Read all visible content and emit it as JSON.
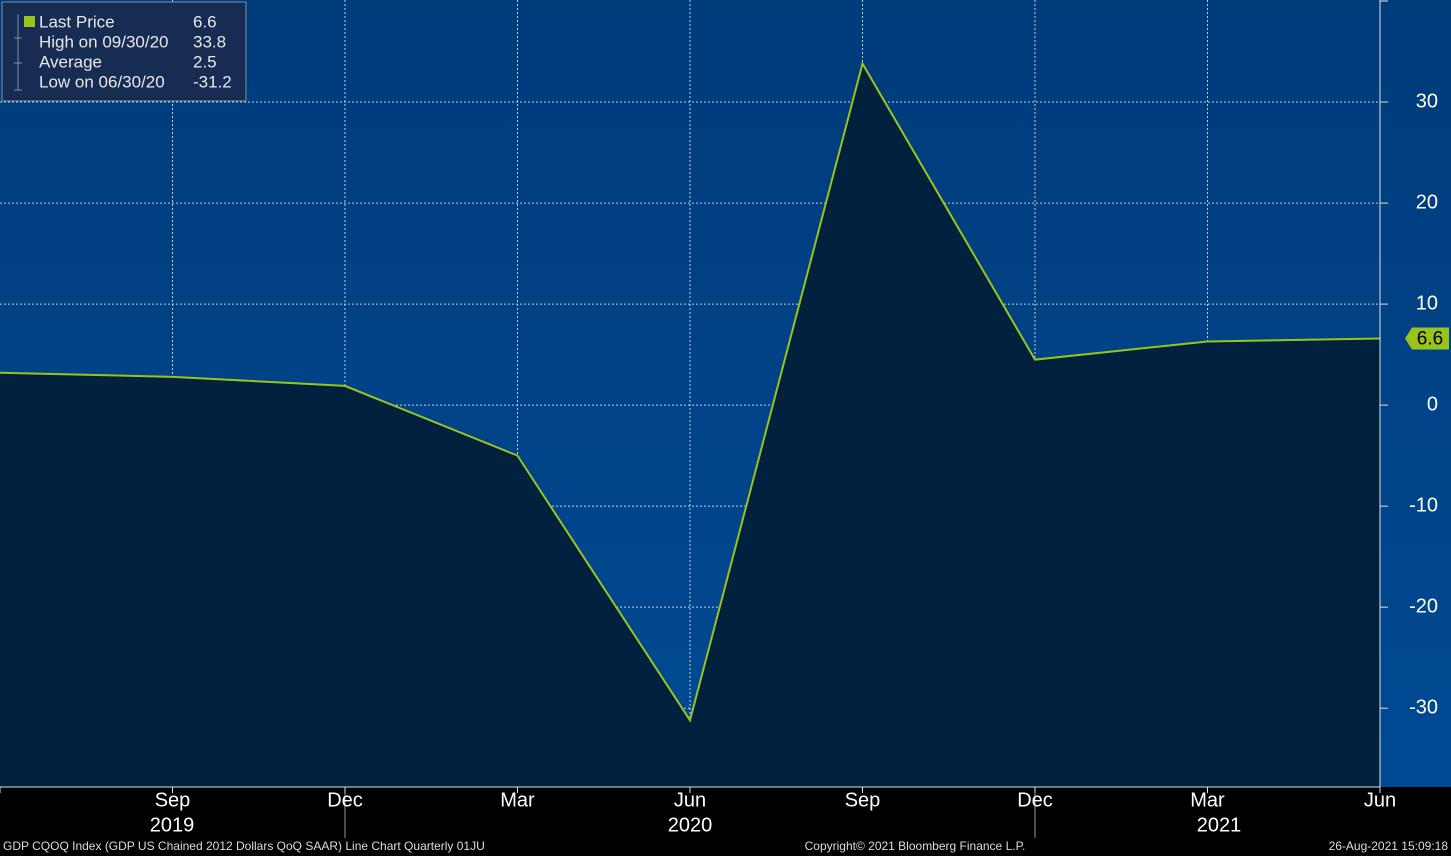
{
  "chart_data": {
    "type": "line",
    "categories": [
      null,
      "Sep",
      "Dec",
      "Mar",
      "Jun",
      "Sep",
      "Dec",
      "Mar",
      "Jun"
    ],
    "year_labels": [
      "2019",
      "2020",
      "2021"
    ],
    "series": [
      {
        "name": "Last Price",
        "color": "#9ac31c",
        "values": [
          3.2,
          2.8,
          1.9,
          -5.0,
          -31.2,
          33.8,
          4.5,
          6.3,
          6.6
        ]
      }
    ],
    "ylim": [
      -37.8,
      40.1
    ],
    "yticks": [
      -30,
      -20,
      -10,
      0,
      10,
      20,
      30
    ],
    "grid": true,
    "legend": [
      {
        "label": "Last Price",
        "value": 6.6
      },
      {
        "label": "High on 09/30/20",
        "value": 33.8
      },
      {
        "label": "Average",
        "value": 2.5
      },
      {
        "label": "Low on 06/30/20",
        "value": -31.2
      }
    ],
    "footer": {
      "description": "GDP CQOQ Index (GDP US Chained 2012 Dollars QoQ SAAR) Line Chart  Quarterly 01JU",
      "copyright": "Copyright© 2021 Bloomberg Finance L.P.",
      "timestamp": "26-Aug-2021 15:09:18"
    }
  }
}
